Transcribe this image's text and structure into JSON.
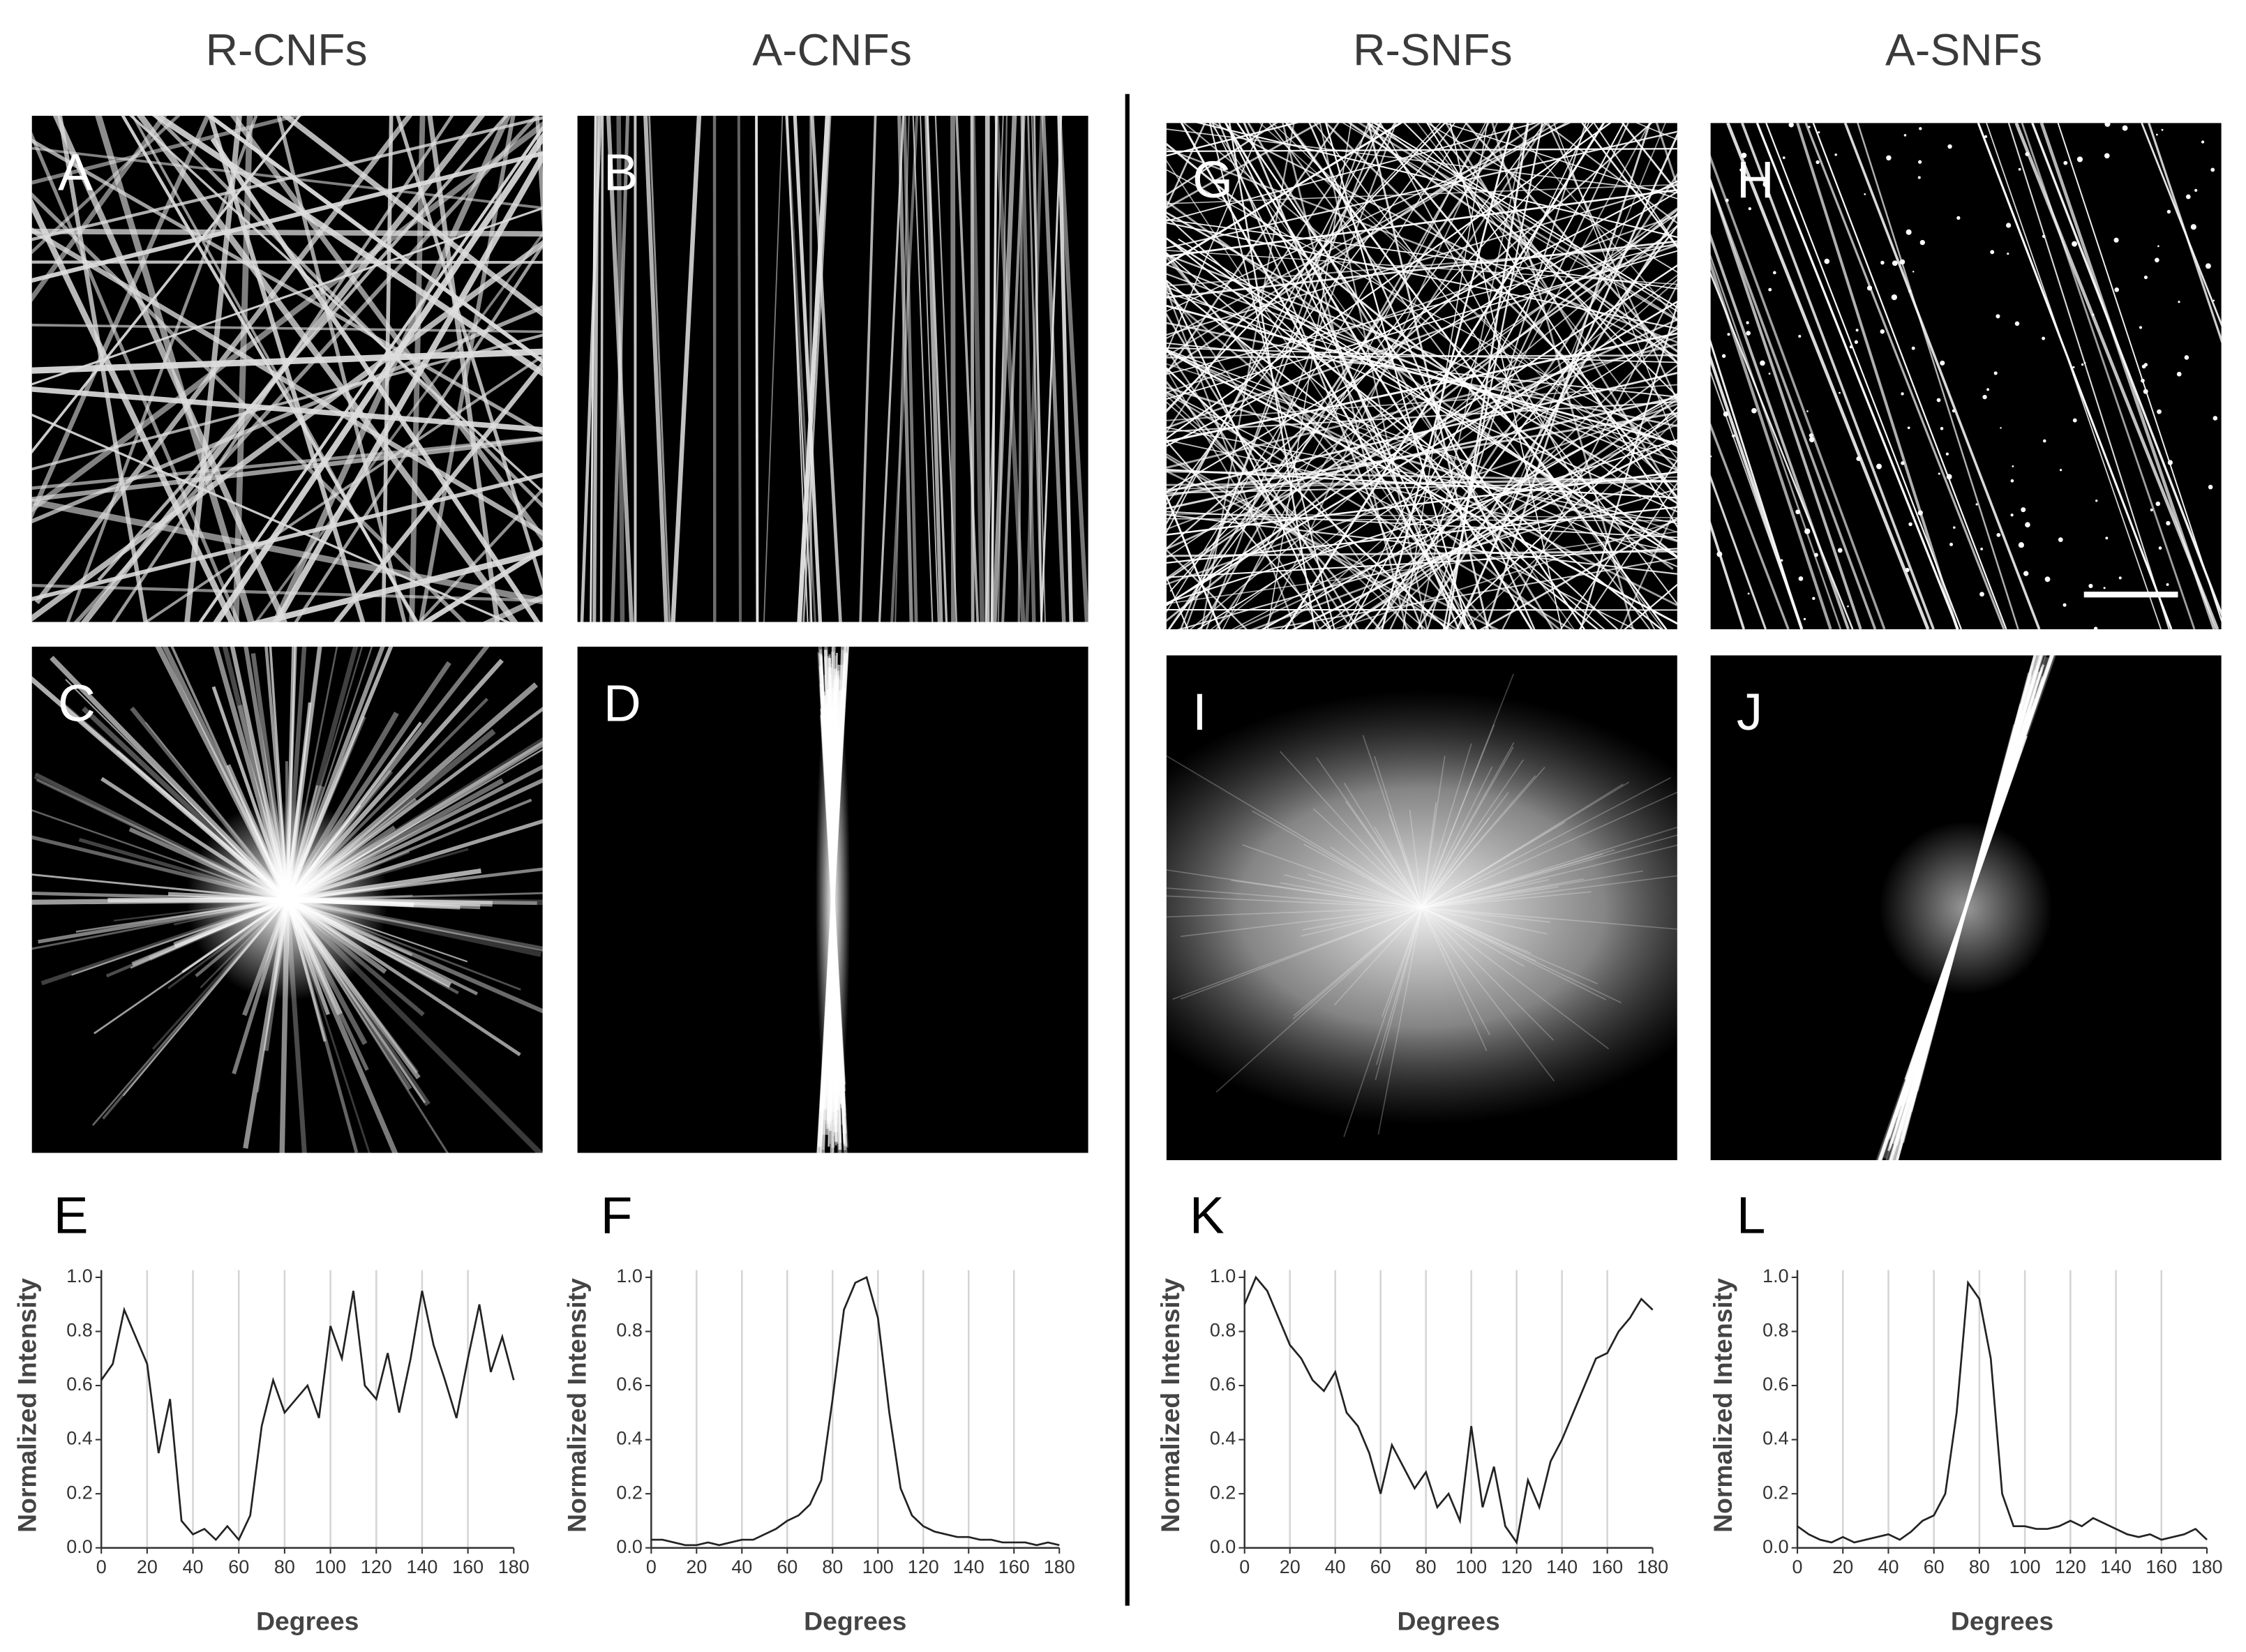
{
  "columns": [
    {
      "title": "R-CNFs",
      "image_labels": [
        "A",
        "C"
      ]
    },
    {
      "title": "A-CNFs",
      "image_labels": [
        "B",
        "D"
      ]
    },
    {
      "title": "R-SNFs",
      "image_labels": [
        "G",
        "I"
      ]
    },
    {
      "title": "A-SNFs",
      "image_labels": [
        "H",
        "J"
      ]
    }
  ],
  "chart_data": [
    {
      "type": "line",
      "label": "E",
      "xlabel": "Degrees",
      "ylabel": "Normalized Intensity",
      "x": [
        0,
        5,
        10,
        15,
        20,
        25,
        30,
        35,
        40,
        45,
        50,
        55,
        60,
        65,
        70,
        75,
        80,
        85,
        90,
        95,
        100,
        105,
        110,
        115,
        120,
        125,
        130,
        135,
        140,
        145,
        150,
        155,
        160,
        165,
        170,
        175,
        180
      ],
      "series": [
        {
          "color": "#222222",
          "values": [
            0.62,
            0.68,
            0.88,
            0.78,
            0.68,
            0.35,
            0.55,
            0.1,
            0.05,
            0.07,
            0.03,
            0.08,
            0.03,
            0.12,
            0.45,
            0.62,
            0.5,
            0.55,
            0.6,
            0.48,
            0.82,
            0.7,
            0.95,
            0.6,
            0.55,
            0.72,
            0.5,
            0.7,
            0.95,
            0.75,
            0.62,
            0.48,
            0.7,
            0.9,
            0.65,
            0.78,
            0.62
          ]
        }
      ],
      "xlim": [
        0,
        180
      ],
      "xticks": [
        0,
        20,
        40,
        60,
        80,
        100,
        120,
        140,
        160,
        180
      ],
      "ylim": [
        0,
        1
      ],
      "yticks": [
        {
          "value": 0,
          "label": "0.0"
        },
        0.2,
        0.4,
        0.6,
        0.8,
        {
          "value": 1,
          "label": "1.0"
        }
      ],
      "grid": "x"
    },
    {
      "type": "line",
      "label": "F",
      "xlabel": "Degrees",
      "ylabel": "Normalized Intensity",
      "x": [
        0,
        5,
        10,
        15,
        20,
        25,
        30,
        35,
        40,
        45,
        50,
        55,
        60,
        65,
        70,
        75,
        80,
        85,
        90,
        95,
        100,
        105,
        110,
        115,
        120,
        125,
        130,
        135,
        140,
        145,
        150,
        155,
        160,
        165,
        170,
        175,
        180
      ],
      "series": [
        {
          "color": "#222222",
          "values": [
            0.03,
            0.03,
            0.02,
            0.01,
            0.01,
            0.02,
            0.01,
            0.02,
            0.03,
            0.03,
            0.05,
            0.07,
            0.1,
            0.12,
            0.16,
            0.25,
            0.55,
            0.88,
            0.98,
            1.0,
            0.85,
            0.5,
            0.22,
            0.12,
            0.08,
            0.06,
            0.05,
            0.04,
            0.04,
            0.03,
            0.03,
            0.02,
            0.02,
            0.02,
            0.01,
            0.02,
            0.01
          ]
        }
      ],
      "xlim": [
        0,
        180
      ],
      "xticks": [
        0,
        20,
        40,
        60,
        80,
        100,
        120,
        140,
        160,
        180
      ],
      "ylim": [
        0,
        1
      ],
      "yticks": [
        {
          "value": 0,
          "label": "0.0"
        },
        0.2,
        0.4,
        0.6,
        0.8,
        {
          "value": 1,
          "label": "1.0"
        }
      ],
      "grid": "x"
    },
    {
      "type": "line",
      "label": "K",
      "xlabel": "Degrees",
      "ylabel": "Normalized Intensity",
      "x": [
        0,
        5,
        10,
        15,
        20,
        25,
        30,
        35,
        40,
        45,
        50,
        55,
        60,
        65,
        70,
        75,
        80,
        85,
        90,
        95,
        100,
        105,
        110,
        115,
        120,
        125,
        130,
        135,
        140,
        145,
        150,
        155,
        160,
        165,
        170,
        175,
        180
      ],
      "series": [
        {
          "color": "#222222",
          "values": [
            0.9,
            1.0,
            0.95,
            0.85,
            0.75,
            0.7,
            0.62,
            0.58,
            0.65,
            0.5,
            0.45,
            0.35,
            0.2,
            0.38,
            0.3,
            0.22,
            0.28,
            0.15,
            0.2,
            0.1,
            0.45,
            0.15,
            0.3,
            0.08,
            0.02,
            0.25,
            0.15,
            0.32,
            0.4,
            0.5,
            0.6,
            0.7,
            0.72,
            0.8,
            0.85,
            0.92,
            0.88
          ]
        }
      ],
      "xlim": [
        0,
        180
      ],
      "xticks": [
        0,
        20,
        40,
        60,
        80,
        100,
        120,
        140,
        160,
        180
      ],
      "ylim": [
        0,
        1
      ],
      "yticks": [
        {
          "value": 0,
          "label": "0.0"
        },
        0.2,
        0.4,
        0.6,
        0.8,
        {
          "value": 1,
          "label": "1.0"
        }
      ],
      "grid": "x"
    },
    {
      "type": "line",
      "label": "L",
      "xlabel": "Degrees",
      "ylabel": "Normalized Intensity",
      "x": [
        0,
        5,
        10,
        15,
        20,
        25,
        30,
        35,
        40,
        45,
        50,
        55,
        60,
        65,
        70,
        75,
        80,
        85,
        90,
        95,
        100,
        105,
        110,
        115,
        120,
        125,
        130,
        135,
        140,
        145,
        150,
        155,
        160,
        165,
        170,
        175,
        180
      ],
      "series": [
        {
          "color": "#222222",
          "values": [
            0.08,
            0.05,
            0.03,
            0.02,
            0.04,
            0.02,
            0.03,
            0.04,
            0.05,
            0.03,
            0.06,
            0.1,
            0.12,
            0.2,
            0.5,
            0.98,
            0.92,
            0.7,
            0.2,
            0.08,
            0.08,
            0.07,
            0.07,
            0.08,
            0.1,
            0.08,
            0.11,
            0.09,
            0.07,
            0.05,
            0.04,
            0.05,
            0.03,
            0.04,
            0.05,
            0.07,
            0.03
          ]
        }
      ],
      "xlim": [
        0,
        180
      ],
      "xticks": [
        0,
        20,
        40,
        60,
        80,
        100,
        120,
        140,
        160,
        180
      ],
      "ylim": [
        0,
        1
      ],
      "yticks": [
        {
          "value": 0,
          "label": "0.0"
        },
        0.2,
        0.4,
        0.6,
        0.8,
        {
          "value": 1,
          "label": "1.0"
        }
      ],
      "grid": "x"
    }
  ]
}
